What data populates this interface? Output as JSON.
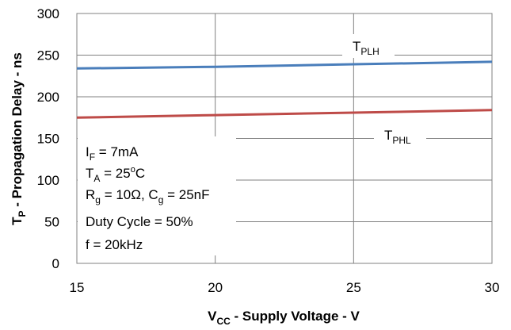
{
  "chart_data": {
    "type": "line",
    "xlabel": {
      "main": "V",
      "sub": "CC",
      "rest": " - Supply Voltage - V"
    },
    "ylabel": {
      "main": "T",
      "sub": "P",
      "rest": " - Propagation Delay - ns"
    },
    "xlim": [
      15,
      30
    ],
    "ylim": [
      0,
      300
    ],
    "xticks": [
      "15",
      "20",
      "25",
      "30"
    ],
    "yticks": [
      "0",
      "50",
      "100",
      "150",
      "200",
      "250",
      "300"
    ],
    "grid": true,
    "series": [
      {
        "name": {
          "main": "T",
          "sub": "PLH"
        },
        "color": "#4a7ebb",
        "x": [
          15,
          20,
          25,
          30
        ],
        "y": [
          234,
          236,
          239,
          242
        ]
      },
      {
        "name": {
          "main": "T",
          "sub": "PHL"
        },
        "color": "#be4b48",
        "x": [
          15,
          20,
          25,
          30
        ],
        "y": [
          175,
          178,
          181,
          184
        ]
      }
    ],
    "annotations": {
      "line1": {
        "a": "I",
        "b": "F",
        "c": " = 7mA"
      },
      "line2": {
        "a": "T",
        "b": "A",
        "c": " = 25",
        "d": "o",
        "e": "C"
      },
      "line3": {
        "a": "R",
        "b": "g",
        "c": " = 10Ω, C",
        "d": "g",
        "e": " = 25nF"
      },
      "line4": "Duty Cycle = 50%",
      "line5": "f = 20kHz"
    }
  }
}
